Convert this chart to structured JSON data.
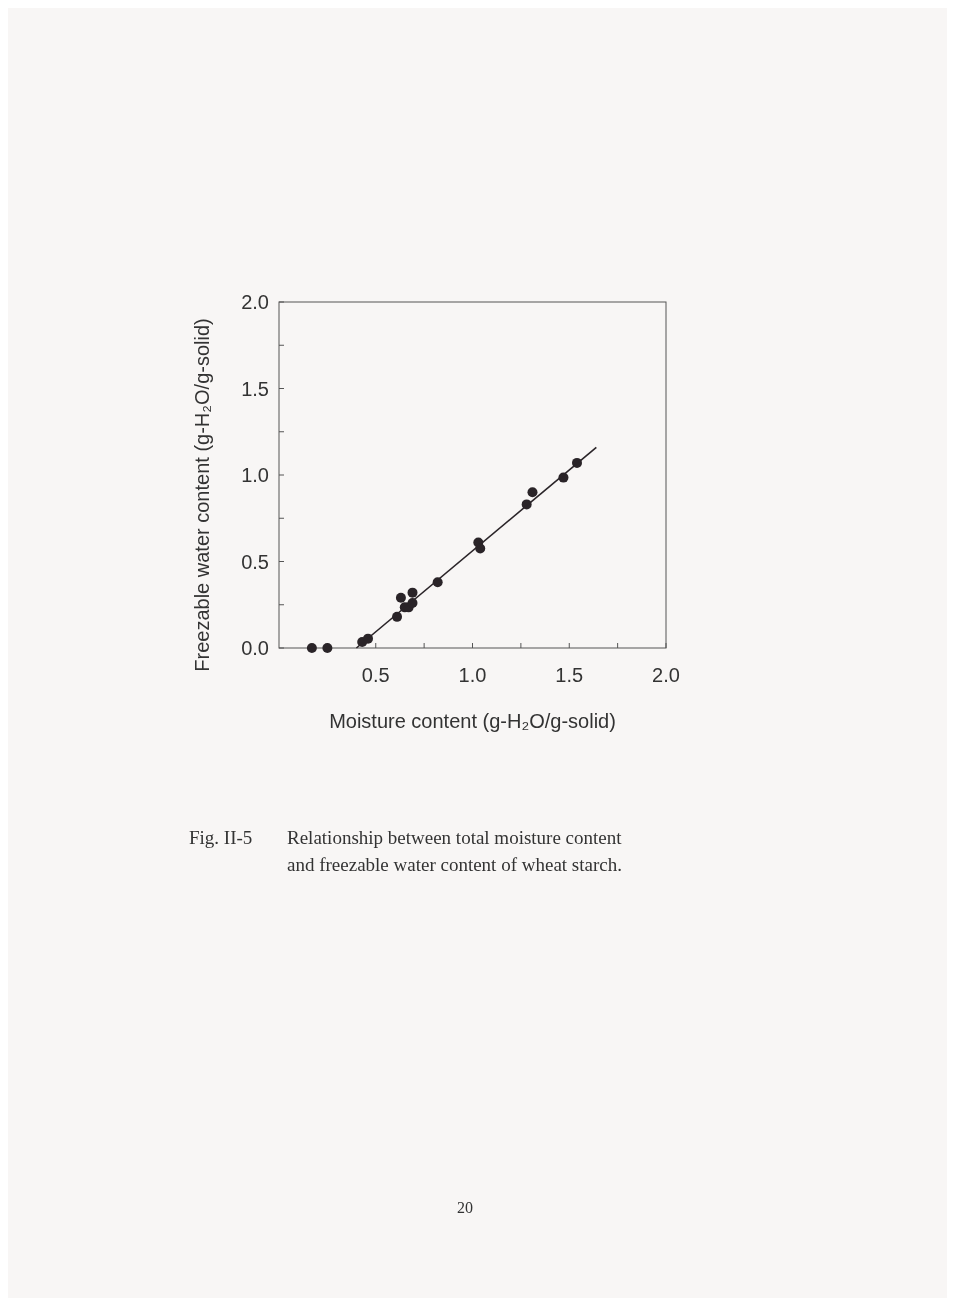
{
  "chart_data": {
    "type": "scatter",
    "xlabel": "Moisture content (g-H₂O/g-solid)",
    "ylabel": "Freezable water content (g-H₂O/g-solid)",
    "annotations": [
      "Fig. II-5",
      "Relationship between total moisture content and freezable water content of wheat starch.",
      "20"
    ],
    "xlim": [
      0,
      2
    ],
    "ylim": [
      0,
      2
    ],
    "xticks": [
      {
        "value": 0.25,
        "label": null
      },
      0.5,
      {
        "value": 0.75,
        "label": null
      },
      {
        "value": 1,
        "label": "1.0"
      },
      {
        "value": 1.25,
        "label": null
      },
      1.5,
      {
        "value": 1.75,
        "label": null
      },
      {
        "value": 2,
        "label": "2.0"
      }
    ],
    "yticks": [
      {
        "value": 0,
        "label": "0.0"
      },
      {
        "value": 0.25,
        "label": null
      },
      0.5,
      {
        "value": 0.75,
        "label": null
      },
      {
        "value": 1,
        "label": "1.0"
      },
      {
        "value": 1.25,
        "label": null
      },
      1.5,
      {
        "value": 1.75,
        "label": null
      },
      {
        "value": 2,
        "label": "2.0"
      }
    ],
    "series": [
      {
        "type": "scatter",
        "marker": "circle",
        "color": "#2a2428",
        "x": [
          0.17,
          0.25,
          0.43,
          0.46,
          0.61,
          0.63,
          0.65,
          0.67,
          0.69,
          0.69,
          0.82,
          1.03,
          1.04,
          1.28,
          1.31,
          1.47,
          1.54
        ],
        "values": [
          0,
          0,
          0.035,
          0.054,
          0.18,
          0.29,
          0.235,
          0.235,
          0.32,
          0.26,
          0.38,
          0.61,
          0.575,
          0.83,
          0.9,
          0.985,
          1.07
        ]
      },
      {
        "type": "line",
        "marker": "none",
        "color": "#2a2428",
        "x": [
          0.4,
          1.64
        ],
        "values": [
          0,
          1.16
        ]
      }
    ]
  }
}
